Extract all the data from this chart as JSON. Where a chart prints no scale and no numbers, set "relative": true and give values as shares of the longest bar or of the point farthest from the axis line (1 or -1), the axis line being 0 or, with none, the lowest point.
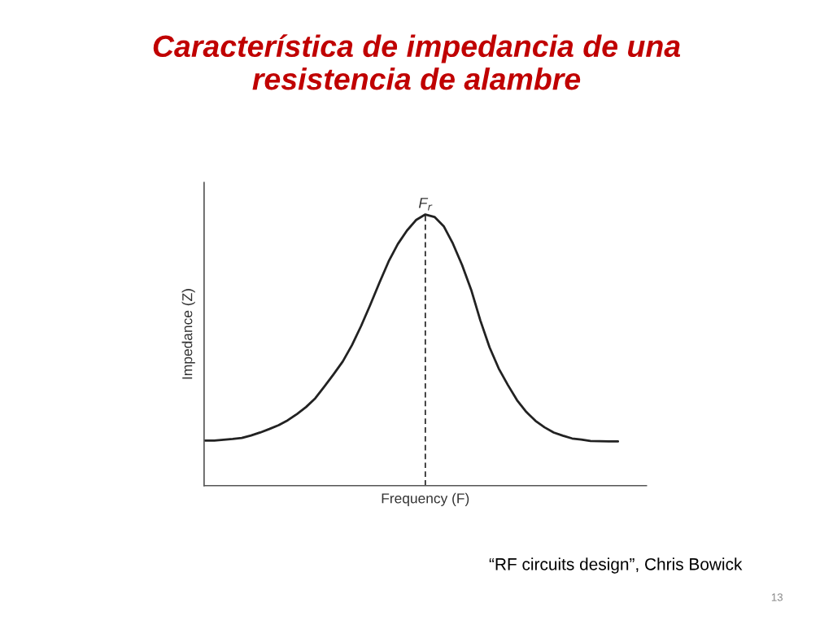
{
  "chart_data": {
    "type": "line",
    "title": "Característica de impedancia de una resistencia de alambre",
    "xlabel": "Frequency (F)",
    "ylabel": "Impedance (Z)",
    "relative": true,
    "categories": [
      null,
      null,
      null,
      null,
      null,
      null,
      null,
      null,
      null,
      null,
      null,
      null,
      null,
      null,
      null,
      null,
      null,
      null,
      null,
      null,
      null,
      null,
      null,
      null,
      null,
      null,
      null,
      null,
      null,
      null,
      null,
      null,
      null,
      null,
      null,
      null,
      null,
      null,
      null,
      null,
      null,
      null,
      null,
      null,
      null,
      null
    ],
    "values": [
      0.166,
      0.166,
      0.169,
      0.172,
      0.176,
      0.185,
      0.196,
      0.209,
      0.223,
      0.241,
      0.264,
      0.29,
      0.322,
      0.366,
      0.411,
      0.458,
      0.518,
      0.589,
      0.667,
      0.749,
      0.827,
      0.891,
      0.941,
      0.98,
      1.0,
      0.991,
      0.957,
      0.893,
      0.814,
      0.722,
      0.609,
      0.51,
      0.432,
      0.371,
      0.315,
      0.272,
      0.239,
      0.215,
      0.196,
      0.184,
      0.174,
      0.17,
      0.165,
      0.164,
      0.163,
      0.163
    ],
    "color": "#222222",
    "annotations": [
      {
        "text": "F$_{r}$",
        "y": 1.0
      },
      "“RF circuits design”, Chris Bowick",
      "13"
    ]
  }
}
